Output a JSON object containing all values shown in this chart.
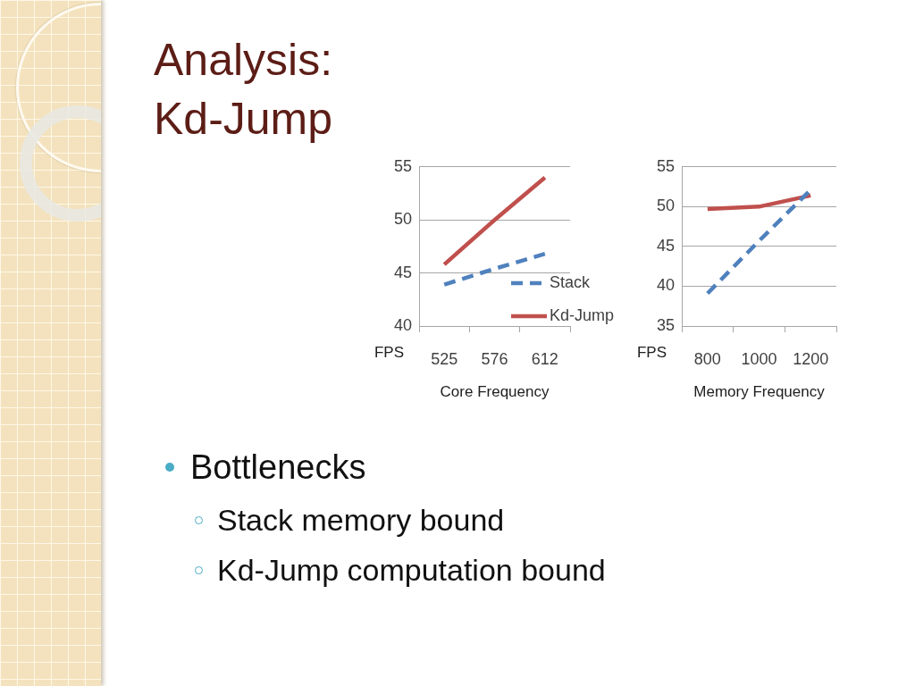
{
  "chart_data": [
    {
      "type": "other",
      "title": "Analysis: Kd-Jump"
    },
    {
      "type": "line",
      "categories": [
        "525",
        "576",
        "612"
      ],
      "series": [
        {
          "name": "Stack",
          "color": "#4f81bd",
          "line_style": "dashed",
          "values": [
            43.9,
            45.4,
            46.8
          ]
        },
        {
          "name": "Kd-Jump",
          "color": "#c0504d",
          "line_style": "solid",
          "values": [
            45.8,
            50,
            54
          ]
        }
      ],
      "xlabel": "Core Frequency",
      "ylabel": "FPS",
      "ylim": [
        40,
        55
      ],
      "yticks": [
        40,
        45,
        50,
        55
      ],
      "grid": "y",
      "legend": "bottom right"
    },
    {
      "type": "line",
      "categories": [
        "800",
        "1000",
        "1200"
      ],
      "series": [
        {
          "color": "#4f81bd",
          "line_style": "dashed",
          "values": [
            39.1,
            45.7,
            52.1
          ]
        },
        {
          "color": "#c0504d",
          "line_style": "solid",
          "values": [
            49.7,
            50,
            51.4
          ]
        }
      ],
      "xlabel": "Memory Frequency",
      "ylabel": "FPS",
      "ylim": [
        35,
        55
      ],
      "yticks": [
        35,
        40,
        45,
        50,
        55
      ],
      "grid": "y"
    },
    {
      "type": "other",
      "annotations": [
        "Bottlenecks",
        "Stack memory bound",
        "Kd-Jump computation bound"
      ]
    }
  ]
}
